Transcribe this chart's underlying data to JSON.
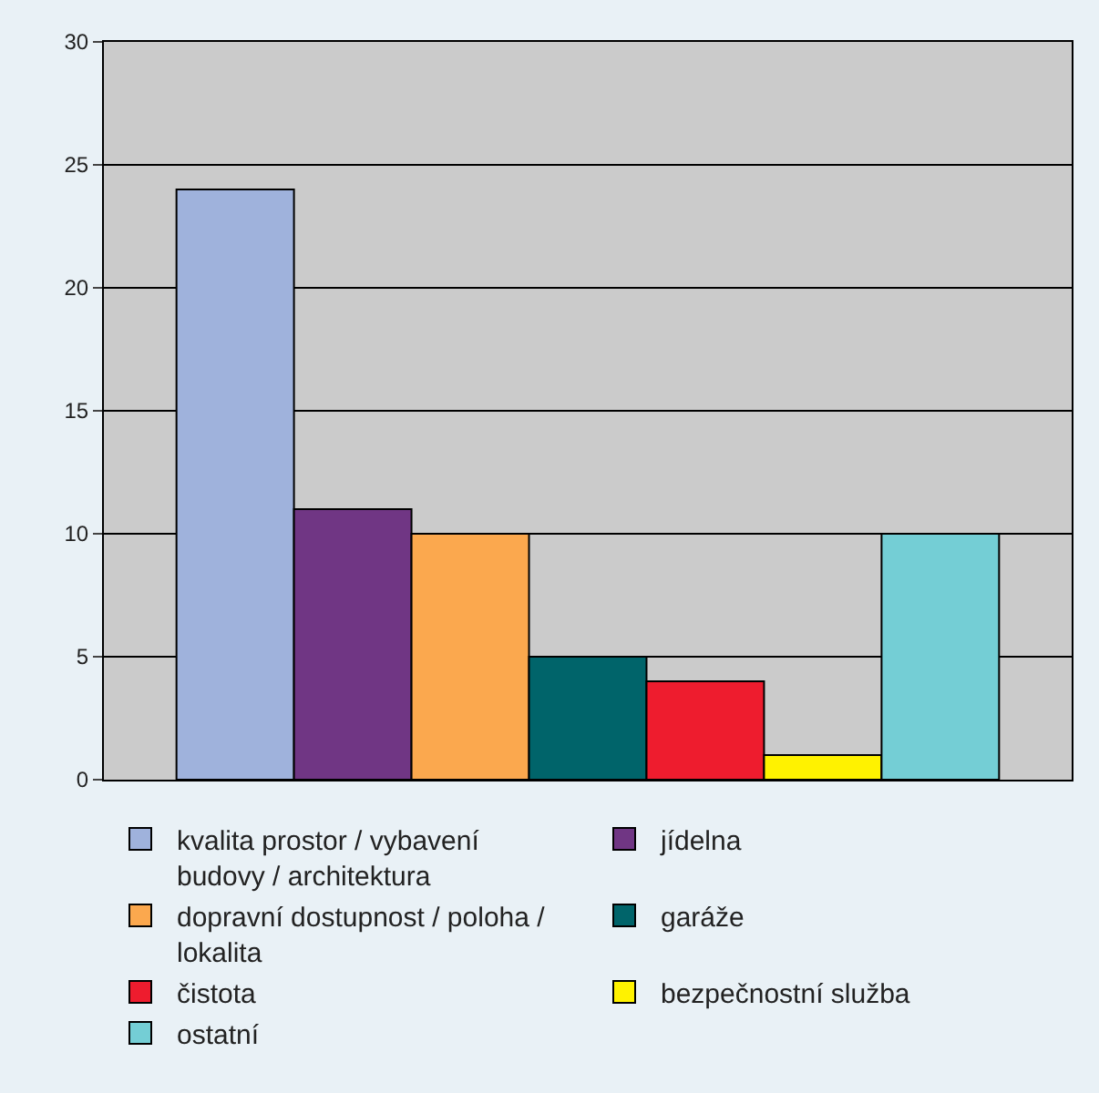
{
  "chart_data": {
    "type": "bar",
    "categories": [
      null
    ],
    "series": [
      {
        "name": "kvalita prostor / vybavení budovy / architektura",
        "color": "#9fb2dc",
        "values": [
          24
        ]
      },
      {
        "name": "jídelna",
        "color": "#703684",
        "values": [
          11
        ]
      },
      {
        "name": "dopravní dostupnost / poloha / lokalita",
        "color": "#fba84e",
        "values": [
          10
        ]
      },
      {
        "name": "garáže",
        "color": "#00646a",
        "values": [
          5
        ]
      },
      {
        "name": "čistota",
        "color": "#ee1c2e",
        "values": [
          4
        ]
      },
      {
        "name": "bezpečnostní služba",
        "color": "#fff200",
        "values": [
          1
        ]
      },
      {
        "name": "ostatní",
        "color": "#74ced5",
        "values": [
          10
        ]
      }
    ],
    "ylim": [
      0,
      30
    ],
    "yticks": [
      0,
      5,
      10,
      15,
      20,
      25,
      30
    ],
    "grid": "y",
    "legend": "bottom"
  }
}
